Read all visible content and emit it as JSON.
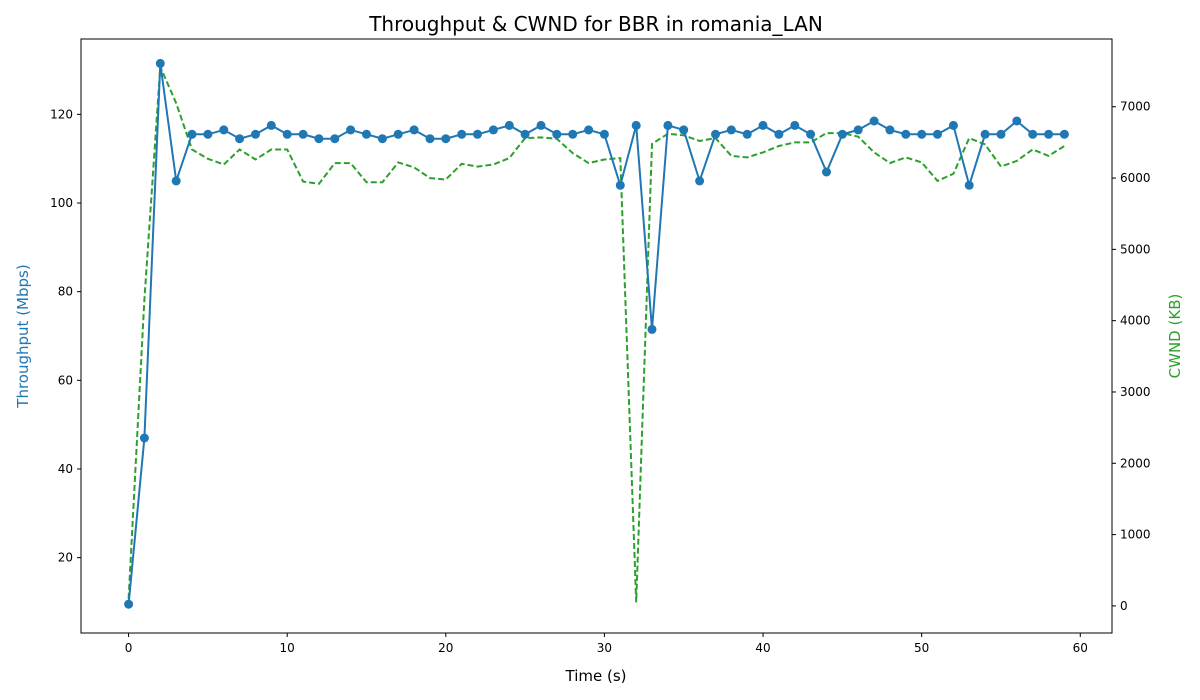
{
  "chart_data": {
    "type": "line",
    "title": "Throughput & CWND for BBR in romania_LAN",
    "xlabel": "Time (s)",
    "ylabel_left": "Throughput (Mbps)",
    "ylabel_right": "CWND (KB)",
    "xlim": [
      -3,
      62
    ],
    "ylim_left": [
      3,
      137
    ],
    "ylim_right": [
      -380,
      7950
    ],
    "xticks": [
      0,
      10,
      20,
      30,
      40,
      50,
      60
    ],
    "yticks_left": [
      20,
      40,
      60,
      80,
      100,
      120
    ],
    "yticks_right": [
      0,
      1000,
      2000,
      3000,
      4000,
      5000,
      6000,
      7000
    ],
    "grid": false,
    "legend": "none",
    "colors": {
      "throughput": "#1f77b4",
      "cwnd": "#2ca02c",
      "axis": "#000000"
    },
    "series": [
      {
        "axis": "left",
        "style": "solid-line-with-circle-markers",
        "x": [
          0,
          1,
          2,
          3,
          4,
          5,
          6,
          7,
          8,
          9,
          10,
          11,
          12,
          13,
          14,
          15,
          16,
          17,
          18,
          19,
          20,
          21,
          22,
          23,
          24,
          25,
          26,
          27,
          28,
          29,
          30,
          31,
          32,
          33,
          34,
          35,
          36,
          37,
          38,
          39,
          40,
          41,
          42,
          43,
          44,
          45,
          46,
          47,
          48,
          49,
          50,
          51,
          52,
          53,
          54,
          55,
          56,
          57,
          58,
          59
        ],
        "values": [
          9.5,
          47,
          131.5,
          105,
          115.5,
          115.5,
          116.5,
          114.5,
          115.5,
          117.5,
          115.5,
          115.5,
          114.5,
          114.5,
          116.5,
          115.5,
          114.5,
          115.5,
          116.5,
          114.5,
          114.5,
          115.5,
          115.5,
          116.5,
          117.5,
          115.5,
          117.5,
          115.5,
          115.5,
          116.5,
          115.5,
          104,
          117.5,
          71.5,
          117.5,
          116.5,
          105,
          115.5,
          116.5,
          115.5,
          117.5,
          115.5,
          117.5,
          115.5,
          107,
          115.5,
          116.5,
          118.5,
          116.5,
          115.5,
          115.5,
          115.5,
          117.5,
          104,
          115.5,
          115.5,
          118.5,
          115.5,
          115.5,
          115.5
        ]
      },
      {
        "axis": "right",
        "style": "dashed-line",
        "x": [
          0,
          1,
          2,
          3,
          4,
          5,
          6,
          7,
          8,
          9,
          10,
          11,
          12,
          13,
          14,
          15,
          16,
          17,
          18,
          19,
          20,
          21,
          22,
          23,
          24,
          25,
          26,
          27,
          28,
          29,
          30,
          31,
          32,
          33,
          34,
          35,
          36,
          37,
          38,
          39,
          40,
          41,
          42,
          43,
          44,
          45,
          46,
          47,
          48,
          49,
          50,
          51,
          52,
          53,
          54,
          55,
          56,
          57,
          58,
          59
        ],
        "values": [
          100,
          4300,
          7560,
          7050,
          6400,
          6270,
          6190,
          6400,
          6260,
          6400,
          6400,
          5950,
          5920,
          6210,
          6210,
          5940,
          5940,
          6220,
          6150,
          6000,
          5980,
          6200,
          6160,
          6190,
          6280,
          6560,
          6570,
          6550,
          6350,
          6210,
          6260,
          6280,
          50,
          6480,
          6620,
          6600,
          6520,
          6560,
          6310,
          6290,
          6360,
          6450,
          6500,
          6500,
          6630,
          6630,
          6580,
          6360,
          6210,
          6290,
          6220,
          5960,
          6060,
          6560,
          6470,
          6160,
          6240,
          6400,
          6310,
          6450
        ]
      }
    ]
  }
}
